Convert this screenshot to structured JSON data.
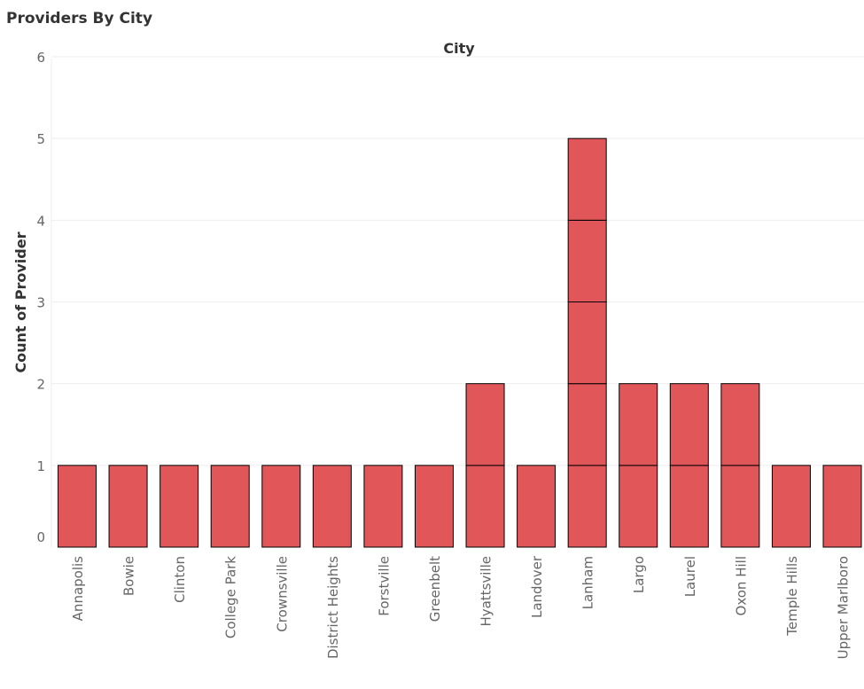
{
  "chart_data": {
    "type": "bar",
    "title": "Providers By City",
    "column_header": "City",
    "xlabel": "",
    "ylabel": "Count of Provider",
    "ylim": [
      0,
      6
    ],
    "yticks": [
      0,
      1,
      2,
      3,
      4,
      5,
      6
    ],
    "grid": true,
    "bar_color": "#e15759",
    "categories": [
      "Annapolis",
      "Bowie",
      "Clinton",
      "College Park",
      "Crownsville",
      "District Heights",
      "Forstville",
      "Greenbelt",
      "Hyattsville",
      "Landover",
      "Lanham",
      "Largo",
      "Laurel",
      "Oxon Hill",
      "Temple Hills",
      "Upper Marlboro"
    ],
    "values": [
      1,
      1,
      1,
      1,
      1,
      1,
      1,
      1,
      2,
      1,
      5,
      2,
      2,
      2,
      1,
      1
    ]
  }
}
